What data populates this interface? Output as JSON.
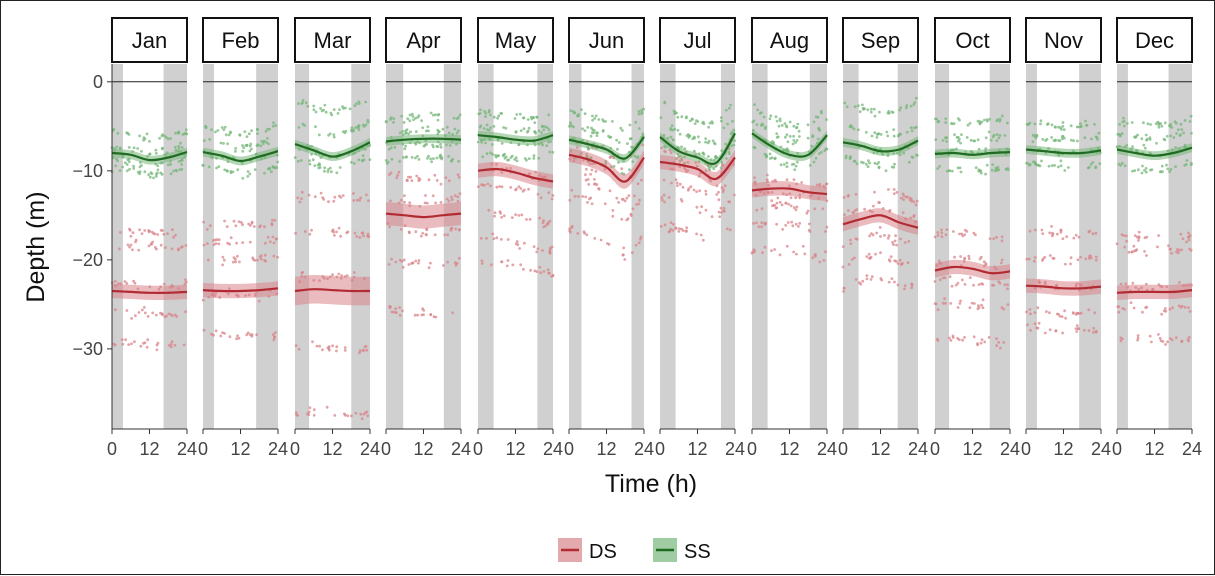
{
  "chart_data": {
    "type": "scatter",
    "xlabel": "Time (h)",
    "ylabel": "Depth (m)",
    "xlim": [
      0,
      24
    ],
    "ylim": [
      -39,
      2
    ],
    "x_ticks": [
      0,
      12,
      24
    ],
    "y_ticks": [
      0,
      -10,
      -20,
      -30
    ],
    "y_tick_labels": [
      "0",
      "−10",
      "−20",
      "−30"
    ],
    "reference_line_y": 0,
    "legend": {
      "position": "bottom",
      "entries": [
        "DS",
        "SS"
      ]
    },
    "colors": {
      "DS": "#d9848a",
      "DS_line": "#b22b33",
      "SS": "#76b77a",
      "SS_line": "#1f6b21",
      "night_band": "#d0d0d0"
    },
    "facets": [
      {
        "label": "Jan",
        "night": [
          [
            0,
            3.5
          ],
          [
            16.5,
            24
          ]
        ],
        "SS_smooth": [
          [
            0,
            -8.0
          ],
          [
            6,
            -8.2
          ],
          [
            12,
            -8.8
          ],
          [
            18,
            -8.5
          ],
          [
            24,
            -7.9
          ]
        ],
        "DS_smooth": [
          [
            0,
            -23.5
          ],
          [
            6,
            -23.6
          ],
          [
            12,
            -23.7
          ],
          [
            18,
            -23.7
          ],
          [
            24,
            -23.6
          ]
        ],
        "SS_bands": [
          -6.5,
          -8.0,
          -9.5,
          -10.5
        ],
        "DS_bands": [
          -17,
          -18.5,
          -23,
          -26,
          -29.5
        ]
      },
      {
        "label": "Feb",
        "night": [
          [
            0,
            3.5
          ],
          [
            17,
            24
          ]
        ],
        "SS_smooth": [
          [
            0,
            -7.9
          ],
          [
            6,
            -8.3
          ],
          [
            12,
            -8.9
          ],
          [
            18,
            -8.4
          ],
          [
            24,
            -7.8
          ]
        ],
        "DS_smooth": [
          [
            0,
            -23.4
          ],
          [
            6,
            -23.5
          ],
          [
            12,
            -23.5
          ],
          [
            18,
            -23.4
          ],
          [
            24,
            -23.2
          ]
        ],
        "SS_bands": [
          -6,
          -7.5,
          -9,
          -10.5
        ],
        "DS_bands": [
          -16,
          -18,
          -20,
          -24,
          -28.5
        ]
      },
      {
        "label": "Mar",
        "night": [
          [
            0,
            4.5
          ],
          [
            18,
            24
          ]
        ],
        "SS_smooth": [
          [
            0,
            -7.0
          ],
          [
            6,
            -7.7
          ],
          [
            12,
            -8.4
          ],
          [
            18,
            -7.8
          ],
          [
            24,
            -6.8
          ]
        ],
        "DS_smooth": [
          [
            0,
            -23.5
          ],
          [
            6,
            -23.3
          ],
          [
            12,
            -23.4
          ],
          [
            18,
            -23.5
          ],
          [
            24,
            -23.5
          ]
        ],
        "SS_bands": [
          -3.5,
          -6,
          -8.5,
          -10
        ],
        "DS_bands": [
          -13,
          -17,
          -22,
          -30,
          -37.3
        ]
      },
      {
        "label": "Apr",
        "night": [
          [
            0,
            5.5
          ],
          [
            18.5,
            24
          ]
        ],
        "SS_smooth": [
          [
            0,
            -6.7
          ],
          [
            6,
            -6.5
          ],
          [
            12,
            -6.4
          ],
          [
            18,
            -6.4
          ],
          [
            24,
            -6.5
          ]
        ],
        "DS_smooth": [
          [
            0,
            -14.8
          ],
          [
            6,
            -15.0
          ],
          [
            12,
            -15.2
          ],
          [
            18,
            -15.0
          ],
          [
            24,
            -14.8
          ]
        ],
        "SS_bands": [
          -4,
          -5.5,
          -7,
          -8.5
        ],
        "DS_bands": [
          -11,
          -13.5,
          -17,
          -20.5,
          -26
        ]
      },
      {
        "label": "May",
        "night": [
          [
            0,
            5
          ],
          [
            19,
            24
          ]
        ],
        "SS_smooth": [
          [
            0,
            -6.0
          ],
          [
            6,
            -6.2
          ],
          [
            12,
            -6.5
          ],
          [
            18,
            -6.6
          ],
          [
            24,
            -6.0
          ]
        ],
        "DS_smooth": [
          [
            0,
            -10.0
          ],
          [
            6,
            -9.8
          ],
          [
            12,
            -10.2
          ],
          [
            18,
            -10.8
          ],
          [
            24,
            -11.2
          ]
        ],
        "SS_bands": [
          -4,
          -5.5,
          -7,
          -8.5
        ],
        "DS_bands": [
          -10,
          -12,
          -15,
          -18,
          -20.5
        ]
      },
      {
        "label": "Jun",
        "night": [
          [
            0,
            4
          ],
          [
            20,
            24
          ]
        ],
        "SS_smooth": [
          [
            0,
            -6.5
          ],
          [
            6,
            -7.0
          ],
          [
            12,
            -7.6
          ],
          [
            18,
            -8.6
          ],
          [
            24,
            -6.2
          ]
        ],
        "DS_smooth": [
          [
            0,
            -8.2
          ],
          [
            6,
            -8.7
          ],
          [
            12,
            -9.6
          ],
          [
            18,
            -11.2
          ],
          [
            24,
            -8.5
          ]
        ],
        "SS_bands": [
          -4.5,
          -6,
          -7.5,
          -9
        ],
        "DS_bands": [
          -8,
          -10,
          -12,
          -14,
          -18
        ]
      },
      {
        "label": "Jul",
        "night": [
          [
            0,
            5
          ],
          [
            19.5,
            24
          ]
        ],
        "SS_smooth": [
          [
            0,
            -6.2
          ],
          [
            6,
            -7.8
          ],
          [
            12,
            -8.5
          ],
          [
            18,
            -9.1
          ],
          [
            24,
            -5.8
          ]
        ],
        "DS_smooth": [
          [
            0,
            -9.0
          ],
          [
            6,
            -9.3
          ],
          [
            12,
            -9.8
          ],
          [
            18,
            -10.9
          ],
          [
            24,
            -8.5
          ]
        ],
        "SS_bands": [
          -4.5,
          -6.5,
          -8,
          -9.5
        ],
        "DS_bands": [
          -8.5,
          -10,
          -12,
          -14,
          -17
        ]
      },
      {
        "label": "Aug",
        "night": [
          [
            0,
            5
          ],
          [
            18.5,
            24
          ]
        ],
        "SS_smooth": [
          [
            0,
            -5.8
          ],
          [
            6,
            -7.2
          ],
          [
            12,
            -8.2
          ],
          [
            18,
            -8.2
          ],
          [
            24,
            -6.0
          ]
        ],
        "DS_smooth": [
          [
            0,
            -12.2
          ],
          [
            6,
            -12.0
          ],
          [
            12,
            -12.0
          ],
          [
            18,
            -12.4
          ],
          [
            24,
            -12.6
          ]
        ],
        "SS_bands": [
          -5,
          -6.5,
          -8,
          -9.5
        ],
        "DS_bands": [
          -11,
          -12.5,
          -14,
          -16,
          -19
        ]
      },
      {
        "label": "Sep",
        "night": [
          [
            0,
            5
          ],
          [
            17.5,
            24
          ]
        ],
        "SS_smooth": [
          [
            0,
            -6.8
          ],
          [
            6,
            -7.2
          ],
          [
            12,
            -7.8
          ],
          [
            18,
            -7.6
          ],
          [
            24,
            -6.6
          ]
        ],
        "DS_smooth": [
          [
            0,
            -16.0
          ],
          [
            6,
            -15.4
          ],
          [
            12,
            -15.0
          ],
          [
            18,
            -15.8
          ],
          [
            24,
            -16.4
          ]
        ],
        "SS_bands": [
          -3.5,
          -6,
          -8,
          -9.5
        ],
        "DS_bands": [
          -12,
          -14,
          -17,
          -19.5,
          -22
        ]
      },
      {
        "label": "Oct",
        "night": [
          [
            0,
            4.5
          ],
          [
            17.5,
            24
          ]
        ],
        "SS_smooth": [
          [
            0,
            -8.1
          ],
          [
            6,
            -8.0
          ],
          [
            12,
            -8.2
          ],
          [
            18,
            -8.0
          ],
          [
            24,
            -7.9
          ]
        ],
        "DS_smooth": [
          [
            0,
            -21.2
          ],
          [
            6,
            -20.8
          ],
          [
            12,
            -21.0
          ],
          [
            18,
            -21.5
          ],
          [
            24,
            -21.3
          ]
        ],
        "SS_bands": [
          -4.5,
          -6.5,
          -8,
          -10
        ],
        "DS_bands": [
          -17,
          -20,
          -22.5,
          -25,
          -29
        ]
      },
      {
        "label": "Nov",
        "night": [
          [
            0,
            3.5
          ],
          [
            17,
            24
          ]
        ],
        "SS_smooth": [
          [
            0,
            -7.6
          ],
          [
            6,
            -7.8
          ],
          [
            12,
            -8.0
          ],
          [
            18,
            -8.0
          ],
          [
            24,
            -7.7
          ]
        ],
        "DS_smooth": [
          [
            0,
            -22.9
          ],
          [
            6,
            -23.0
          ],
          [
            12,
            -23.2
          ],
          [
            18,
            -23.2
          ],
          [
            24,
            -23.0
          ]
        ],
        "SS_bands": [
          -5,
          -6.5,
          -8,
          -9.5
        ],
        "DS_bands": [
          -17,
          -20,
          -23,
          -26,
          -28
        ]
      },
      {
        "label": "Dec",
        "night": [
          [
            0,
            3.5
          ],
          [
            16.5,
            24
          ]
        ],
        "SS_smooth": [
          [
            0,
            -7.6
          ],
          [
            6,
            -8.0
          ],
          [
            12,
            -8.3
          ],
          [
            18,
            -8.0
          ],
          [
            24,
            -7.4
          ]
        ],
        "DS_smooth": [
          [
            0,
            -23.7
          ],
          [
            6,
            -23.6
          ],
          [
            12,
            -23.6
          ],
          [
            18,
            -23.6
          ],
          [
            24,
            -23.4
          ]
        ],
        "SS_bands": [
          -5,
          -6.5,
          -8,
          -10
        ],
        "DS_bands": [
          -17.5,
          -19,
          -23,
          -25.5,
          -29
        ]
      }
    ]
  }
}
